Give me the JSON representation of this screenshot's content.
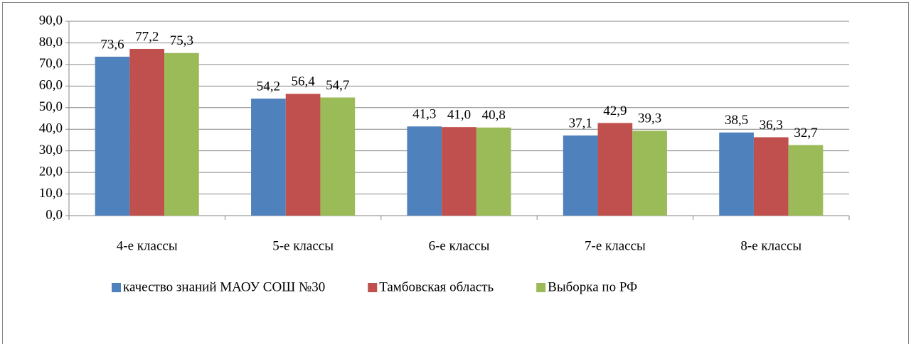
{
  "chart_data": {
    "type": "bar",
    "categories": [
      "4-е классы",
      "5-е классы",
      "6-е классы",
      "7-е классы",
      "8-е классы"
    ],
    "series": [
      {
        "name": "качество знаний МАОУ СОШ №30",
        "color": "#4f81bd",
        "values": [
          73.6,
          54.2,
          41.3,
          37.1,
          38.5
        ],
        "value_labels": [
          "73,6",
          "54,2",
          "41,3",
          "37,1",
          "38,5"
        ]
      },
      {
        "name": "Тамбовская область",
        "color": "#c0504d",
        "values": [
          77.2,
          56.4,
          41.0,
          42.9,
          36.3
        ],
        "value_labels": [
          "77,2",
          "56,4",
          "41,0",
          "42,9",
          "36,3"
        ]
      },
      {
        "name": "Выборка по РФ",
        "color": "#9bbb59",
        "values": [
          75.3,
          54.7,
          40.8,
          39.3,
          32.7
        ],
        "value_labels": [
          "75,3",
          "54,7",
          "40,8",
          "39,3",
          "32,7"
        ]
      }
    ],
    "ylim": [
      0,
      90
    ],
    "yticks": [
      {
        "value": 0,
        "label": "0,0"
      },
      {
        "value": 10,
        "label": "10,0"
      },
      {
        "value": 20,
        "label": "20,0"
      },
      {
        "value": 30,
        "label": "30,0"
      },
      {
        "value": 40,
        "label": "40,0"
      },
      {
        "value": 50,
        "label": "50,0"
      },
      {
        "value": 60,
        "label": "60,0"
      },
      {
        "value": 70,
        "label": "70,0"
      },
      {
        "value": 80,
        "label": "80,0"
      },
      {
        "value": 90,
        "label": "90,0"
      }
    ],
    "grid": true,
    "legend": "bottom"
  }
}
